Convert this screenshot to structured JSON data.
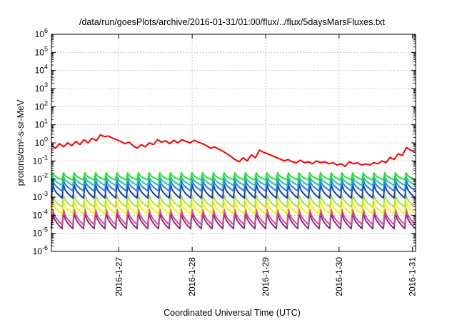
{
  "chart_data": {
    "type": "line",
    "title": "/data/run/goesPlots/archive/2016-01-31/01:00/flux/../flux/5daysMarsFluxes.txt",
    "xlabel": "Coordinated Universal Time (UTC)",
    "ylabel": "protons/cm²-s-sr-MeV",
    "y_scale": "log",
    "ylim": [
      1e-06,
      1000000.0
    ],
    "y_ticks": [
      {
        "value": 1e-06,
        "base": "10",
        "exp": "-6"
      },
      {
        "value": 1e-05,
        "base": "10",
        "exp": "-5"
      },
      {
        "value": 0.0001,
        "base": "10",
        "exp": "-4"
      },
      {
        "value": 0.001,
        "base": "10",
        "exp": "-3"
      },
      {
        "value": 0.01,
        "base": "10",
        "exp": "-2"
      },
      {
        "value": 0.1,
        "base": "10",
        "exp": "-1"
      },
      {
        "value": 1,
        "base": "10",
        "exp": "0"
      },
      {
        "value": 10,
        "base": "10",
        "exp": "1"
      },
      {
        "value": 100,
        "base": "10",
        "exp": "2"
      },
      {
        "value": 1000,
        "base": "10",
        "exp": "3"
      },
      {
        "value": 10000,
        "base": "10",
        "exp": "4"
      },
      {
        "value": 100000,
        "base": "10",
        "exp": "5"
      },
      {
        "value": 1000000,
        "base": "10",
        "exp": "6"
      }
    ],
    "xlim": [
      "2016-01-26T02:00",
      "2016-01-31T01:00"
    ],
    "x_ticks": [
      {
        "value": "2016-01-27T00:00",
        "label": "2016-1-27"
      },
      {
        "value": "2016-01-28T00:00",
        "label": "2016-1-28"
      },
      {
        "value": "2016-01-29T00:00",
        "label": "2016-1-29"
      },
      {
        "value": "2016-01-30T00:00",
        "label": "2016-1-30"
      },
      {
        "value": "2016-01-31T00:00",
        "label": "2016-1-31"
      }
    ],
    "grid": true,
    "series": [
      {
        "color": "#ff0000",
        "stroke_width": 2,
        "x": [
          "2016-01-26T02:00",
          "2016-01-26T03:20",
          "2016-01-26T04:40",
          "2016-01-26T06:00",
          "2016-01-26T07:20",
          "2016-01-26T08:40",
          "2016-01-26T10:00",
          "2016-01-26T11:20",
          "2016-01-26T12:40",
          "2016-01-26T14:00",
          "2016-01-26T15:20",
          "2016-01-26T16:40",
          "2016-01-26T18:00",
          "2016-01-26T19:20",
          "2016-01-26T20:40",
          "2016-01-26T22:00",
          "2016-01-26T23:20",
          "2016-01-27T00:40",
          "2016-01-27T02:00",
          "2016-01-27T03:20",
          "2016-01-27T04:40",
          "2016-01-27T06:00",
          "2016-01-27T07:20",
          "2016-01-27T08:40",
          "2016-01-27T10:00",
          "2016-01-27T11:20",
          "2016-01-27T12:40",
          "2016-01-27T14:00",
          "2016-01-27T15:20",
          "2016-01-27T16:40",
          "2016-01-27T18:00",
          "2016-01-27T19:20",
          "2016-01-27T20:40",
          "2016-01-27T22:00",
          "2016-01-27T23:20",
          "2016-01-28T00:40",
          "2016-01-28T02:00",
          "2016-01-28T03:20",
          "2016-01-28T04:40",
          "2016-01-28T06:00",
          "2016-01-28T07:20",
          "2016-01-28T08:40",
          "2016-01-28T10:00",
          "2016-01-28T11:20",
          "2016-01-28T12:40",
          "2016-01-28T14:00",
          "2016-01-28T15:20",
          "2016-01-28T16:40",
          "2016-01-28T18:00",
          "2016-01-28T19:20",
          "2016-01-28T20:40",
          "2016-01-28T22:00",
          "2016-01-28T23:20",
          "2016-01-29T00:40",
          "2016-01-29T02:00",
          "2016-01-29T03:20",
          "2016-01-29T04:40",
          "2016-01-29T06:00",
          "2016-01-29T07:20",
          "2016-01-29T08:40",
          "2016-01-29T10:00",
          "2016-01-29T11:20",
          "2016-01-29T12:40",
          "2016-01-29T14:00",
          "2016-01-29T15:20",
          "2016-01-29T16:40",
          "2016-01-29T18:00",
          "2016-01-29T19:20",
          "2016-01-29T20:40",
          "2016-01-29T22:00",
          "2016-01-29T23:20",
          "2016-01-30T00:40",
          "2016-01-30T02:00",
          "2016-01-30T03:20",
          "2016-01-30T04:40",
          "2016-01-30T06:00",
          "2016-01-30T07:20",
          "2016-01-30T08:40",
          "2016-01-30T10:00",
          "2016-01-30T11:20",
          "2016-01-30T12:40",
          "2016-01-30T14:00",
          "2016-01-30T15:20",
          "2016-01-30T16:40",
          "2016-01-30T18:00",
          "2016-01-30T19:20",
          "2016-01-30T20:40",
          "2016-01-30T22:00",
          "2016-01-30T23:20",
          "2016-01-31T00:40"
        ],
        "values": [
          0.7,
          0.5,
          0.9,
          0.6,
          1.0,
          0.7,
          1.2,
          0.8,
          1.5,
          1.0,
          1.8,
          1.3,
          2.8,
          2.2,
          2.4,
          1.8,
          1.5,
          1.2,
          0.9,
          1.1,
          0.7,
          0.5,
          0.8,
          0.6,
          1.0,
          0.8,
          1.5,
          1.1,
          1.3,
          0.9,
          1.4,
          1.0,
          1.5,
          1.2,
          1.0,
          1.4,
          1.1,
          0.9,
          0.7,
          0.5,
          0.6,
          0.45,
          0.35,
          0.25,
          0.18,
          0.12,
          0.09,
          0.15,
          0.1,
          0.22,
          0.15,
          0.4,
          0.3,
          0.25,
          0.2,
          0.16,
          0.13,
          0.1,
          0.12,
          0.09,
          0.08,
          0.11,
          0.08,
          0.09,
          0.07,
          0.1,
          0.08,
          0.09,
          0.07,
          0.08,
          0.06,
          0.07,
          0.05,
          0.09,
          0.07,
          0.08,
          0.06,
          0.07,
          0.06,
          0.08,
          0.07,
          0.1,
          0.08,
          0.16,
          0.12,
          0.25,
          0.2,
          0.55,
          0.4,
          0.32
        ]
      },
      {
        "color": "#22e022",
        "stroke_width": 2,
        "sawtooth": {
          "count": 34,
          "peak": 0.022,
          "trough": 0.009
        }
      },
      {
        "color": "#1fbfa8",
        "stroke_width": 2,
        "sawtooth": {
          "count": 34,
          "peak": 0.014,
          "trough": 0.0045
        }
      },
      {
        "color": "#1a7ae6",
        "stroke_width": 2,
        "sawtooth": {
          "count": 34,
          "peak": 0.009,
          "trough": 0.0022
        }
      },
      {
        "color": "#1537c8",
        "stroke_width": 2,
        "sawtooth": {
          "count": 34,
          "peak": 0.005,
          "trough": 0.0009
        }
      },
      {
        "color": "#a2e63a",
        "stroke_width": 2,
        "sawtooth": {
          "count": 34,
          "peak": 0.0013,
          "trough": 0.00028
        }
      },
      {
        "color": "#ffee00",
        "stroke_width": 2,
        "sawtooth": {
          "count": 34,
          "peak": 0.00055,
          "trough": 0.00012
        }
      },
      {
        "color": "#d34f8a",
        "stroke_width": 2,
        "sawtooth": {
          "count": 34,
          "peak": 0.00022,
          "trough": 3e-05
        }
      },
      {
        "color": "#8a2c8c",
        "stroke_width": 2,
        "sawtooth": {
          "count": 34,
          "peak": 0.00014,
          "trough": 1.8e-05
        }
      }
    ]
  }
}
